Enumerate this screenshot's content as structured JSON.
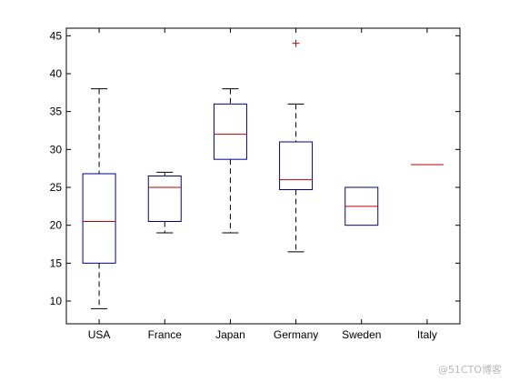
{
  "chart_data": {
    "type": "box",
    "title": "",
    "xlabel": "",
    "ylabel": "",
    "ylim": [
      7,
      46
    ],
    "yticks": [
      10,
      15,
      20,
      25,
      30,
      35,
      40,
      45
    ],
    "grid": false,
    "colors": {
      "box": "#00008b",
      "median": "#c00000",
      "whisker": "#000000",
      "outlier": "#c00000",
      "axis": "#000000"
    },
    "categories": [
      "USA",
      "France",
      "Japan",
      "Germany",
      "Sweden",
      "Italy"
    ],
    "boxes": [
      {
        "category": "USA",
        "whisker_low": 9,
        "q1": 15,
        "median": 20.5,
        "q3": 26.8,
        "whisker_high": 38,
        "outliers": []
      },
      {
        "category": "France",
        "whisker_low": 19,
        "q1": 20.5,
        "median": 25,
        "q3": 26.5,
        "whisker_high": 27,
        "outliers": []
      },
      {
        "category": "Japan",
        "whisker_low": 19,
        "q1": 28.7,
        "median": 32,
        "q3": 36,
        "whisker_high": 38,
        "outliers": []
      },
      {
        "category": "Germany",
        "whisker_low": 16.5,
        "q1": 24.7,
        "median": 26,
        "q3": 31,
        "whisker_high": 36,
        "outliers": [
          44
        ]
      },
      {
        "category": "Sweden",
        "whisker_low": 20,
        "q1": 20,
        "median": 22.5,
        "q3": 25,
        "whisker_high": 25,
        "outliers": []
      },
      {
        "category": "Italy",
        "whisker_low": 28,
        "q1": 28,
        "median": 28,
        "q3": 28,
        "whisker_high": 28,
        "outliers": []
      }
    ]
  },
  "watermark": "@51CTO博客"
}
